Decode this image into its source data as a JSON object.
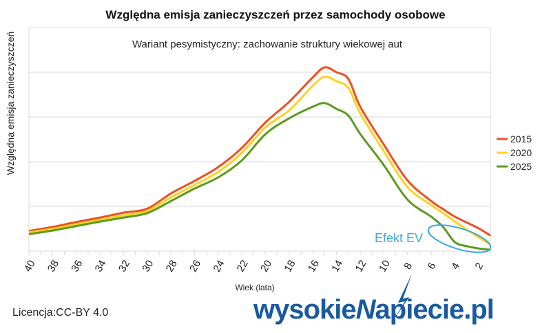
{
  "chart_data": {
    "type": "line",
    "title": "Względna emisja zanieczyszczeń przez samochody osobowe",
    "subtitle": "Wariant pesymistyczny: zachowanie struktury wiekowej aut",
    "xlabel": "Wiek (lata)",
    "ylabel": "Względna emisja zanieczyszczeń",
    "xlim": [
      40,
      1
    ],
    "ylim": [
      0,
      5
    ],
    "grid": true,
    "y_tick_labels_shown": false,
    "x_ticks": [
      40,
      38,
      36,
      34,
      32,
      30,
      28,
      26,
      24,
      22,
      20,
      18,
      16,
      14,
      12,
      10,
      8,
      6,
      4,
      2
    ],
    "legend_position": "right",
    "x": [
      40,
      38,
      36,
      34,
      32,
      30,
      28,
      26,
      24,
      22,
      20,
      18,
      16,
      15,
      14,
      13,
      12,
      10,
      8,
      6,
      5,
      4,
      3,
      2,
      1
    ],
    "series": [
      {
        "name": "2015",
        "color": "#f04e1c",
        "values": [
          0.45,
          0.54,
          0.65,
          0.75,
          0.86,
          0.95,
          1.29,
          1.57,
          1.88,
          2.31,
          2.88,
          3.34,
          3.89,
          4.11,
          4.0,
          3.85,
          3.23,
          2.38,
          1.58,
          1.12,
          0.94,
          0.77,
          0.64,
          0.51,
          0.35
        ]
      },
      {
        "name": "2020",
        "color": "#ffd21f",
        "values": [
          0.42,
          0.5,
          0.6,
          0.7,
          0.8,
          0.9,
          1.2,
          1.48,
          1.77,
          2.2,
          2.77,
          3.15,
          3.7,
          3.9,
          3.8,
          3.65,
          3.08,
          2.23,
          1.43,
          1.03,
          0.85,
          0.66,
          0.48,
          0.31,
          0.15
        ]
      },
      {
        "name": "2025",
        "color": "#5a9a1e",
        "values": [
          0.38,
          0.46,
          0.56,
          0.66,
          0.75,
          0.85,
          1.12,
          1.4,
          1.65,
          2.03,
          2.62,
          2.97,
          3.23,
          3.31,
          3.18,
          3.03,
          2.62,
          1.92,
          1.15,
          0.77,
          0.54,
          0.2,
          0.11,
          0.06,
          0.03
        ]
      }
    ],
    "annotation": {
      "text": "Efekt EV",
      "color": "#3aa8e0"
    }
  },
  "license": "Licencja:CC-BY 4.0",
  "logo": "wysokieNapiecie.pl"
}
